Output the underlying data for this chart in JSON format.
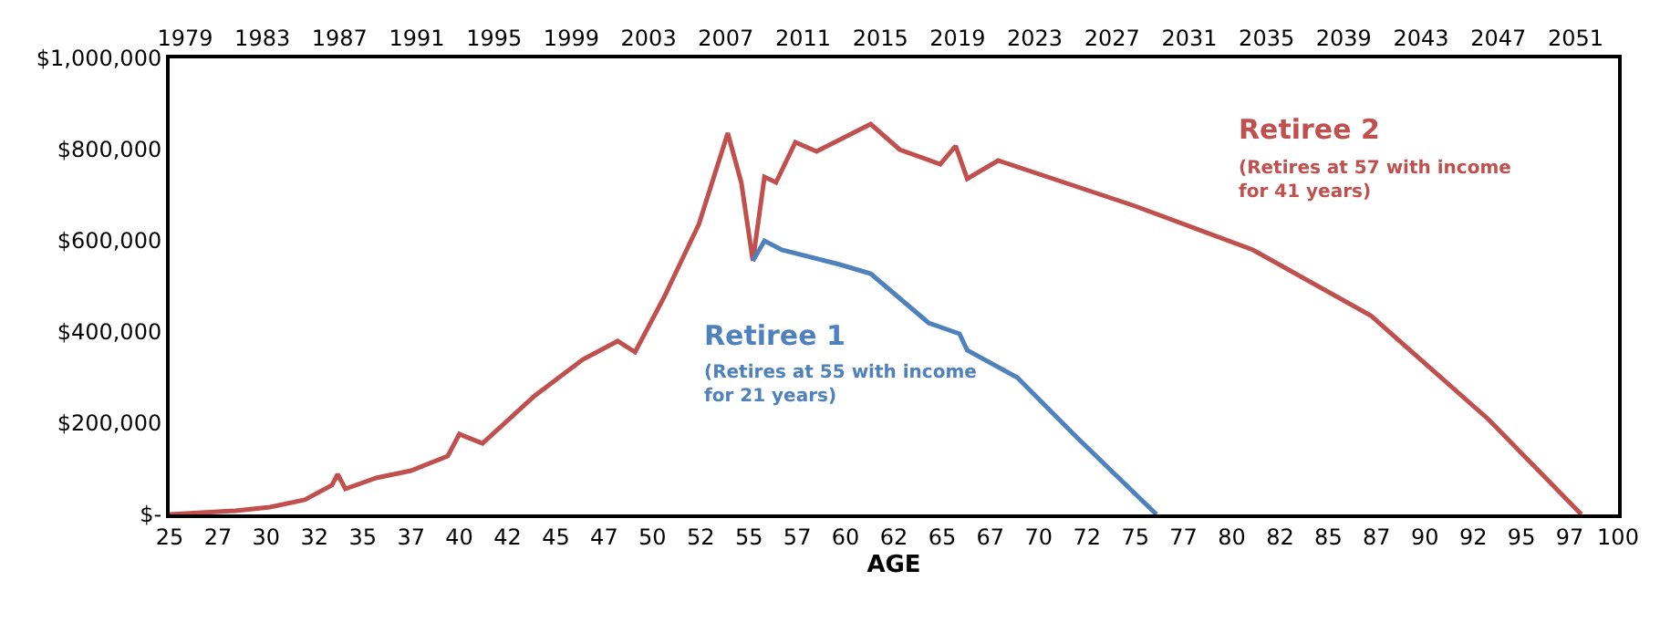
{
  "chart_data": {
    "type": "line",
    "xlabel": "AGE",
    "xlim": [
      25,
      100
    ],
    "xticks": [
      25,
      {
        "value": 27.5,
        "label": "27"
      },
      30,
      {
        "value": 32.5,
        "label": "32"
      },
      35,
      {
        "value": 37.5,
        "label": "37"
      },
      40,
      {
        "value": 42.5,
        "label": "42"
      },
      45,
      {
        "value": 47.5,
        "label": "47"
      },
      50,
      {
        "value": 52.5,
        "label": "52"
      },
      55,
      {
        "value": 57.5,
        "label": "57"
      },
      60,
      {
        "value": 62.5,
        "label": "62"
      },
      65,
      {
        "value": 67.5,
        "label": "67"
      },
      70,
      {
        "value": 72.5,
        "label": "72"
      },
      75,
      {
        "value": 77.5,
        "label": "77"
      },
      80,
      {
        "value": 82.5,
        "label": "82"
      },
      85,
      {
        "value": 87.5,
        "label": "87"
      },
      90,
      {
        "value": 92.5,
        "label": "92"
      },
      95,
      {
        "value": 97.5,
        "label": "97"
      },
      100
    ],
    "x2lim": [
      1978.2,
      2053.2
    ],
    "x2ticks": [
      1979,
      1983,
      1987,
      1991,
      1995,
      1999,
      2003,
      2007,
      2011,
      2015,
      2019,
      2023,
      2027,
      2031,
      2035,
      2039,
      2043,
      2047,
      2051
    ],
    "ylim": [
      0,
      1000000
    ],
    "yticks": [
      {
        "value": 0,
        "label": "$-"
      },
      {
        "value": 200000,
        "label": "$200,000"
      },
      {
        "value": 400000,
        "label": "$400,000"
      },
      {
        "value": 600000,
        "label": "$600,000"
      },
      {
        "value": 800000,
        "label": "$800,000"
      },
      {
        "value": 1000000,
        "label": "$1,000,000"
      }
    ],
    "legend": false,
    "marker": "none",
    "line_style": "solid",
    "series": [
      {
        "name": "Retiree 2",
        "color": "#c0504d",
        "x": [
          25,
          28.4,
          30.2,
          32,
          33.4,
          33.7,
          34.1,
          35.7,
          37.5,
          39.4,
          40,
          41.2,
          43.9,
          46.4,
          48.2,
          49.1,
          50.6,
          52.4,
          53.9,
          54.6,
          55.2,
          55.8,
          56.4,
          57.4,
          58.5,
          61.3,
          62.8,
          64.9,
          65.7,
          66.3,
          67.9,
          75,
          81.1,
          87.2,
          93.3,
          98.1
        ],
        "values": [
          0,
          8000,
          16000,
          32000,
          64000,
          88000,
          56000,
          80000,
          96000,
          128000,
          176000,
          156000,
          260000,
          340000,
          380000,
          356000,
          476000,
          636000,
          836000,
          728000,
          556000,
          740000,
          728000,
          816000,
          796000,
          856000,
          800000,
          768000,
          808000,
          736000,
          776000,
          676000,
          580000,
          436000,
          208000,
          0
        ]
      },
      {
        "name": "Retiree 1",
        "color": "#4f81bd",
        "x": [
          55.2,
          55.8,
          56.7,
          59.7,
          61.3,
          64.3,
          65.9,
          66.3,
          68.9,
          72,
          76.1
        ],
        "values": [
          556000,
          600000,
          580000,
          548000,
          528000,
          420000,
          396000,
          360000,
          300000,
          168000,
          0
        ]
      }
    ],
    "annotations": [
      "(Retires at 57 with income\nfor 41 years)",
      "(Retires at 55 with income\nfor 21 years)"
    ]
  }
}
